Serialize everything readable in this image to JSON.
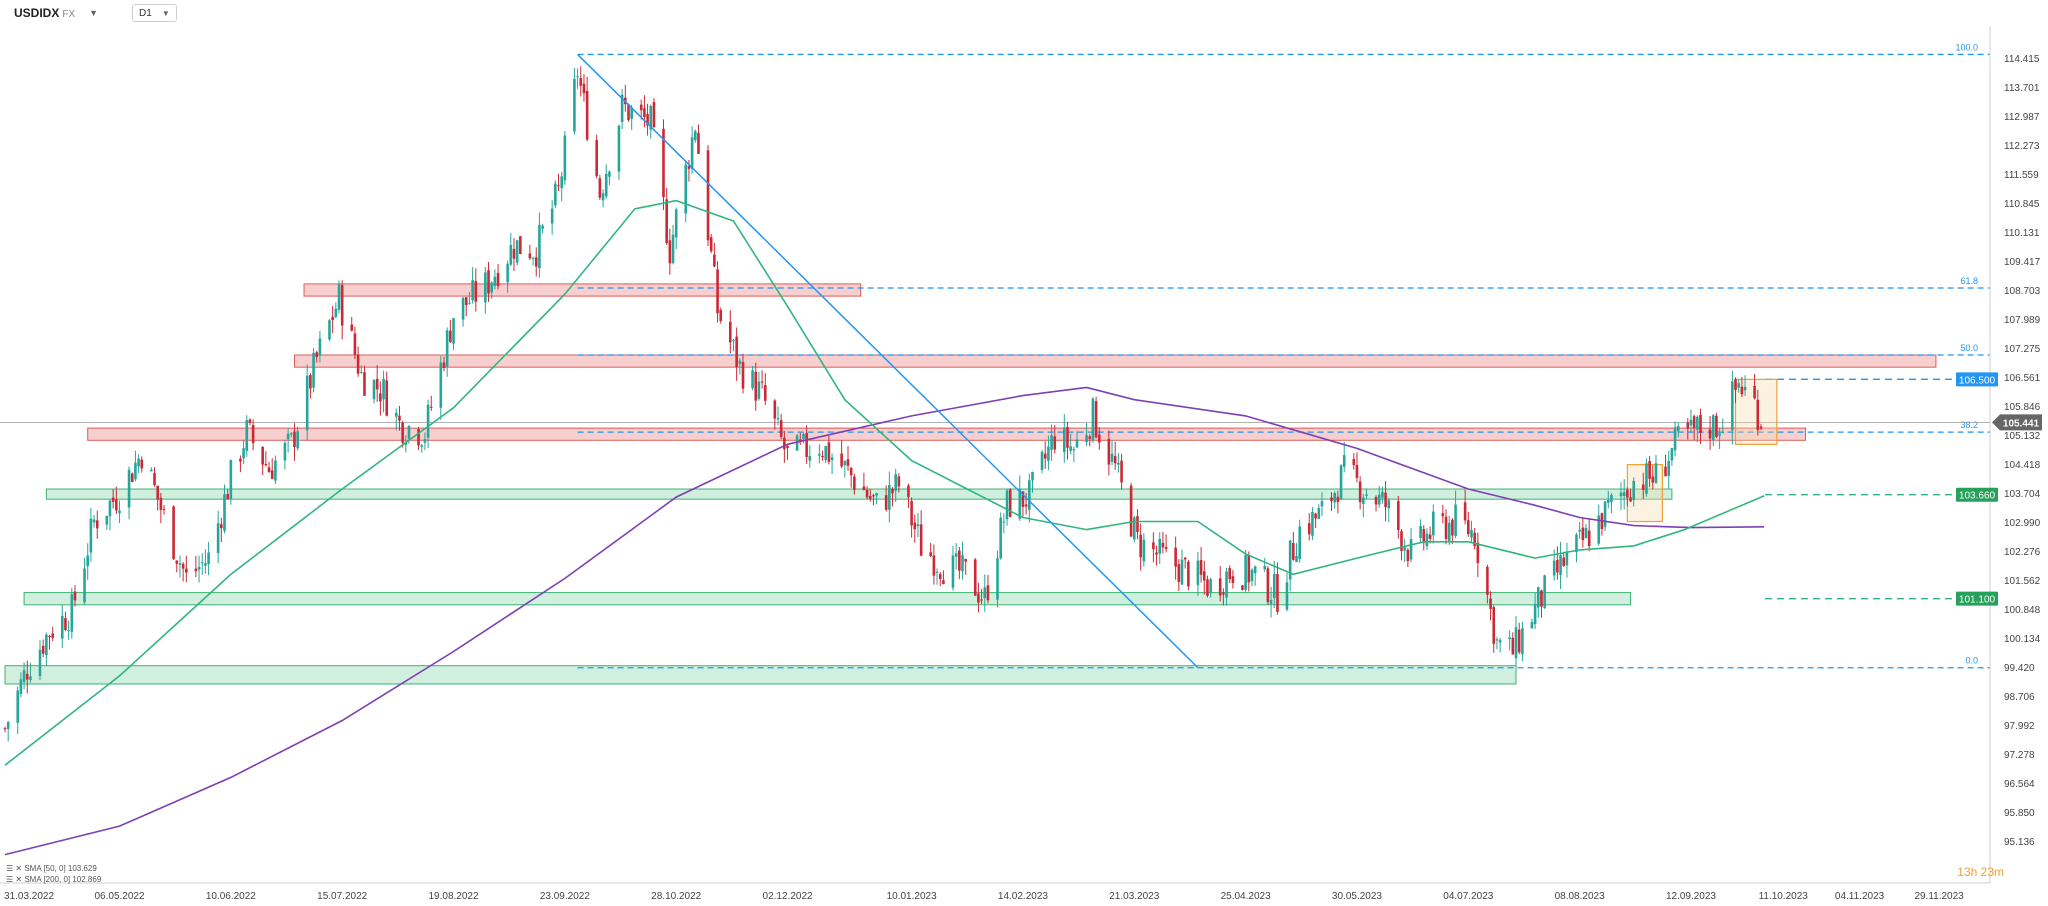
{
  "toolbar": {
    "symbol": "USDIDX",
    "market": "FX",
    "timeframe": "D1"
  },
  "countdown": "13h 23m",
  "colors": {
    "bull": "#26a69a",
    "bear": "#cc2936",
    "sma50": "#2eb67d",
    "sma200": "#7e3fb5",
    "fib": "#2196f3",
    "trendline": "#2196f3",
    "res_fill": "#f7c7c7",
    "res_stroke": "#e05a5a",
    "sup_fill": "#c8ecd9",
    "sup_stroke": "#3cb371",
    "orange": "#f0a030",
    "countdown": "#f0a030"
  },
  "chart_data": {
    "type": "candlestick",
    "title": "USDIDX",
    "ylim": [
      94.1,
      115.2
    ],
    "xlim": [
      "2022-03-31",
      "2023-12-15"
    ],
    "y_ticks": [
      "114.415",
      "113.701",
      "112.987",
      "112.273",
      "111.559",
      "110.845",
      "110.131",
      "109.417",
      "108.703",
      "107.989",
      "107.275",
      "106.561",
      "105.846",
      "105.132",
      "104.418",
      "103.704",
      "102.990",
      "102.276",
      "101.562",
      "100.848",
      "100.134",
      "99.420",
      "98.706",
      "97.992",
      "97.278",
      "96.564",
      "95.850",
      "95.136"
    ],
    "x_ticks": [
      {
        "label": "31.03.2022",
        "date": "2022-03-31"
      },
      {
        "label": "06.05.2022",
        "date": "2022-05-06"
      },
      {
        "label": "10.06.2022",
        "date": "2022-06-10"
      },
      {
        "label": "15.07.2022",
        "date": "2022-07-15"
      },
      {
        "label": "19.08.2022",
        "date": "2022-08-19"
      },
      {
        "label": "23.09.2022",
        "date": "2022-09-23"
      },
      {
        "label": "28.10.2022",
        "date": "2022-10-28"
      },
      {
        "label": "02.12.2022",
        "date": "2022-12-02"
      },
      {
        "label": "10.01.2023",
        "date": "2023-01-10"
      },
      {
        "label": "14.02.2023",
        "date": "2023-02-14"
      },
      {
        "label": "21.03.2023",
        "date": "2023-03-21"
      },
      {
        "label": "25.04.2023",
        "date": "2023-04-25"
      },
      {
        "label": "30.05.2023",
        "date": "2023-05-30"
      },
      {
        "label": "04.07.2023",
        "date": "2023-07-04"
      },
      {
        "label": "08.08.2023",
        "date": "2023-08-08"
      },
      {
        "label": "12.09.2023",
        "date": "2023-09-12"
      },
      {
        "label": "11.10.2023",
        "date": "2023-10-11"
      },
      {
        "label": "04.11.2023",
        "date": "2023-11-04"
      },
      {
        "label": "29.11.2023",
        "date": "2023-11-29"
      }
    ],
    "close_path": [
      [
        "2022-03-31",
        97.9
      ],
      [
        "2022-04-07",
        99.4
      ],
      [
        "2022-04-14",
        100.3
      ],
      [
        "2022-04-21",
        100.8
      ],
      [
        "2022-04-28",
        103.0
      ],
      [
        "2022-05-06",
        103.7
      ],
      [
        "2022-05-13",
        104.7
      ],
      [
        "2022-05-20",
        103.1
      ],
      [
        "2022-05-27",
        101.6
      ],
      [
        "2022-06-03",
        102.1
      ],
      [
        "2022-06-10",
        104.1
      ],
      [
        "2022-06-15",
        105.2
      ],
      [
        "2022-06-22",
        104.3
      ],
      [
        "2022-06-29",
        104.9
      ],
      [
        "2022-07-07",
        107.0
      ],
      [
        "2022-07-14",
        108.5
      ],
      [
        "2022-07-21",
        106.6
      ],
      [
        "2022-07-28",
        106.2
      ],
      [
        "2022-08-02",
        105.4
      ],
      [
        "2022-08-10",
        105.2
      ],
      [
        "2022-08-19",
        108.1
      ],
      [
        "2022-08-29",
        108.8
      ],
      [
        "2022-09-07",
        109.8
      ],
      [
        "2022-09-14",
        109.7
      ],
      [
        "2022-09-21",
        111.1
      ],
      [
        "2022-09-27",
        114.1
      ],
      [
        "2022-10-04",
        111.1
      ],
      [
        "2022-10-11",
        113.2
      ],
      [
        "2022-10-20",
        112.8
      ],
      [
        "2022-10-26",
        109.7
      ],
      [
        "2022-11-03",
        112.8
      ],
      [
        "2022-11-10",
        108.2
      ],
      [
        "2022-11-17",
        106.8
      ],
      [
        "2022-11-24",
        106.1
      ],
      [
        "2022-12-02",
        104.6
      ],
      [
        "2022-12-12",
        104.9
      ],
      [
        "2022-12-20",
        104.3
      ],
      [
        "2022-12-30",
        103.4
      ],
      [
        "2023-01-06",
        103.9
      ],
      [
        "2023-01-13",
        102.4
      ],
      [
        "2023-01-20",
        101.9
      ],
      [
        "2023-01-27",
        101.7
      ],
      [
        "2023-02-02",
        101.1
      ],
      [
        "2023-02-09",
        103.4
      ],
      [
        "2023-02-16",
        103.6
      ],
      [
        "2023-02-24",
        105.1
      ],
      [
        "2023-03-02",
        104.8
      ],
      [
        "2023-03-08",
        105.6
      ],
      [
        "2023-03-15",
        104.3
      ],
      [
        "2023-03-22",
        102.5
      ],
      [
        "2023-03-30",
        102.1
      ],
      [
        "2023-04-06",
        101.8
      ],
      [
        "2023-04-14",
        101.4
      ],
      [
        "2023-04-21",
        101.8
      ],
      [
        "2023-04-28",
        101.7
      ],
      [
        "2023-05-05",
        101.2
      ],
      [
        "2023-05-12",
        102.8
      ],
      [
        "2023-05-19",
        103.2
      ],
      [
        "2023-05-26",
        104.2
      ],
      [
        "2023-06-01",
        103.8
      ],
      [
        "2023-06-08",
        103.4
      ],
      [
        "2023-06-16",
        102.2
      ],
      [
        "2023-06-23",
        102.8
      ],
      [
        "2023-06-30",
        103.0
      ],
      [
        "2023-07-06",
        102.7
      ],
      [
        "2023-07-13",
        100.0
      ],
      [
        "2023-07-18",
        99.8
      ],
      [
        "2023-07-26",
        101.0
      ],
      [
        "2023-08-03",
        102.0
      ],
      [
        "2023-08-10",
        102.6
      ],
      [
        "2023-08-18",
        103.4
      ],
      [
        "2023-08-25",
        104.0
      ],
      [
        "2023-09-01",
        104.1
      ],
      [
        "2023-09-08",
        105.0
      ],
      [
        "2023-09-15",
        105.3
      ],
      [
        "2023-09-21",
        105.4
      ],
      [
        "2023-09-27",
        106.4
      ],
      [
        "2023-10-02",
        105.9
      ],
      [
        "2023-10-04",
        105.5
      ]
    ],
    "sma50": [
      [
        "2022-03-31",
        97.0
      ],
      [
        "2022-05-06",
        99.2
      ],
      [
        "2022-06-10",
        101.7
      ],
      [
        "2022-07-15",
        103.8
      ],
      [
        "2022-08-19",
        105.8
      ],
      [
        "2022-09-23",
        108.6
      ],
      [
        "2022-10-15",
        110.7
      ],
      [
        "2022-10-28",
        110.9
      ],
      [
        "2022-11-15",
        110.4
      ],
      [
        "2022-12-02",
        108.3
      ],
      [
        "2022-12-20",
        106.0
      ],
      [
        "2023-01-10",
        104.5
      ],
      [
        "2023-02-14",
        103.1
      ],
      [
        "2023-03-06",
        102.8
      ],
      [
        "2023-03-21",
        103.0
      ],
      [
        "2023-04-10",
        103.0
      ],
      [
        "2023-04-25",
        102.2
      ],
      [
        "2023-05-10",
        101.7
      ],
      [
        "2023-05-30",
        102.1
      ],
      [
        "2023-06-20",
        102.5
      ],
      [
        "2023-07-04",
        102.5
      ],
      [
        "2023-07-25",
        102.1
      ],
      [
        "2023-08-08",
        102.3
      ],
      [
        "2023-08-25",
        102.4
      ],
      [
        "2023-09-10",
        102.8
      ],
      [
        "2023-09-25",
        103.3
      ],
      [
        "2023-10-05",
        103.63
      ]
    ],
    "sma200": [
      [
        "2022-03-31",
        94.8
      ],
      [
        "2022-05-06",
        95.5
      ],
      [
        "2022-06-10",
        96.7
      ],
      [
        "2022-07-15",
        98.1
      ],
      [
        "2022-08-19",
        99.8
      ],
      [
        "2022-09-23",
        101.6
      ],
      [
        "2022-10-28",
        103.6
      ],
      [
        "2022-12-02",
        104.9
      ],
      [
        "2023-01-10",
        105.6
      ],
      [
        "2023-02-14",
        106.1
      ],
      [
        "2023-03-06",
        106.3
      ],
      [
        "2023-03-21",
        106.0
      ],
      [
        "2023-04-25",
        105.6
      ],
      [
        "2023-05-30",
        104.8
      ],
      [
        "2023-06-20",
        104.2
      ],
      [
        "2023-07-04",
        103.8
      ],
      [
        "2023-07-25",
        103.4
      ],
      [
        "2023-08-08",
        103.1
      ],
      [
        "2023-08-25",
        102.9
      ],
      [
        "2023-09-12",
        102.85
      ],
      [
        "2023-10-05",
        102.87
      ]
    ],
    "horizontal_levels": [
      {
        "label": "106.500",
        "value": 106.5,
        "style": "dashed",
        "color": "#2196f3"
      },
      {
        "label": "103.660",
        "value": 103.66,
        "style": "dashed",
        "color": "#2eb67d"
      },
      {
        "label": "101.100",
        "value": 101.1,
        "style": "dashed",
        "color": "#2eb67d"
      }
    ],
    "current_price": {
      "label": "105.441",
      "value": 105.441
    },
    "fib_levels": [
      {
        "label": "100.0",
        "value": 114.5
      },
      {
        "label": "61.8",
        "value": 108.75
      },
      {
        "label": "50.0",
        "value": 107.1
      },
      {
        "label": "38.2",
        "value": 105.2
      },
      {
        "label": "0.0",
        "value": 99.4
      }
    ],
    "fib_start_date": "2022-09-27",
    "fib_end_date": "2023-12-15",
    "trendline": [
      [
        "2022-09-27",
        114.5
      ],
      [
        "2023-04-10",
        99.4
      ]
    ],
    "zones": [
      {
        "type": "resistance",
        "from": "2022-07-03",
        "to": "2022-12-25",
        "ymin": 108.55,
        "ymax": 108.85
      },
      {
        "type": "resistance",
        "from": "2022-06-30",
        "to": "2023-11-28",
        "ymin": 106.8,
        "ymax": 107.1
      },
      {
        "type": "resistance",
        "from": "2022-04-26",
        "to": "2023-10-18",
        "ymin": 105.0,
        "ymax": 105.3
      },
      {
        "type": "support",
        "from": "2022-04-13",
        "to": "2023-09-06",
        "ymin": 103.55,
        "ymax": 103.8
      },
      {
        "type": "support",
        "from": "2022-04-06",
        "to": "2023-08-24",
        "ymin": 100.95,
        "ymax": 101.25
      },
      {
        "type": "support",
        "from": "2022-03-31",
        "to": "2023-07-19",
        "ymin": 99.0,
        "ymax": 99.45
      }
    ],
    "highlight_boxes": [
      {
        "from": "2023-08-23",
        "to": "2023-09-03",
        "ymin": 103.0,
        "ymax": 104.4,
        "color": "#f0a030"
      },
      {
        "from": "2023-09-26",
        "to": "2023-10-09",
        "ymin": 104.9,
        "ymax": 106.5,
        "color": "#f0a030"
      }
    ],
    "legend": [
      {
        "name": "SMA [50, 0]",
        "value": "103.629"
      },
      {
        "name": "SMA [200, 0]",
        "value": "102.869"
      }
    ]
  }
}
